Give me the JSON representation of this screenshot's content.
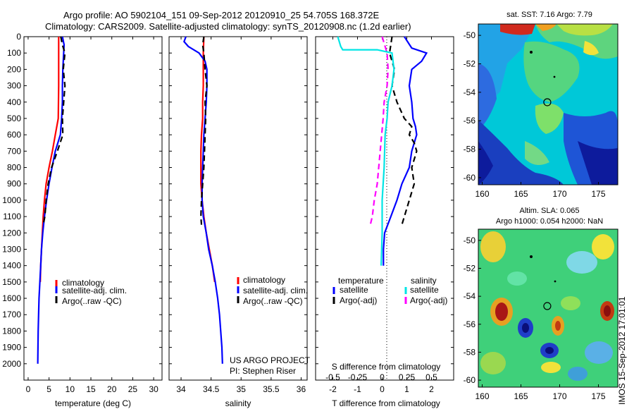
{
  "header": {
    "line1": "Argo profile: AO 5902104_151 09-Sep-2012 20120910_25 54.705S 168.372E",
    "line2": "Climatology: CARS2009. Satellite-adjusted climatology: synTS_20120908.nc (1.2d earlier)"
  },
  "project": {
    "line1": "US ARGO PROJECT",
    "line2": "PI: Stephen Riser"
  },
  "timestamp": "IMOS 15-Sep-2012 17:01:01",
  "colors": {
    "climatology": "#ff0000",
    "satellite": "#0000ff",
    "argo": "#000000",
    "s_satellite": "#00e5e5",
    "s_argo": "#ff00ff"
  },
  "chart_data": [
    {
      "type": "line",
      "xlabel": "temperature (deg C)",
      "xlim": [
        -1,
        32
      ],
      "xticks": [
        0,
        5,
        10,
        15,
        20,
        25,
        30
      ],
      "ylim": [
        0,
        2100
      ],
      "yticks": [
        0,
        100,
        200,
        300,
        400,
        500,
        600,
        700,
        800,
        900,
        1000,
        1100,
        1200,
        1300,
        1400,
        1500,
        1600,
        1700,
        1800,
        1900,
        2000
      ],
      "legend": [
        "climatology",
        "satellite-adj. clim.",
        "Argo(..raw -QC)"
      ],
      "legend_position": "bottom-center",
      "series": [
        {
          "name": "climatology",
          "color": "#ff0000",
          "dash": false,
          "points": [
            [
              7.3,
              0
            ],
            [
              7.3,
              100
            ],
            [
              7.3,
              200
            ],
            [
              7.3,
              300
            ],
            [
              7.25,
              400
            ],
            [
              7.2,
              500
            ],
            [
              6.5,
              600
            ],
            [
              5.8,
              700
            ],
            [
              5.0,
              800
            ],
            [
              4.3,
              900
            ],
            [
              3.9,
              1000
            ],
            [
              3.6,
              1100
            ],
            [
              3.4,
              1200
            ],
            [
              3.2,
              1300
            ],
            [
              3.0,
              1400
            ],
            [
              2.9,
              1500
            ]
          ]
        },
        {
          "name": "satellite-adj. clim.",
          "color": "#0000ff",
          "dash": false,
          "points": [
            [
              8.2,
              0
            ],
            [
              8.6,
              50
            ],
            [
              8.5,
              100
            ],
            [
              8.3,
              200
            ],
            [
              8.2,
              300
            ],
            [
              8.2,
              400
            ],
            [
              8.0,
              500
            ],
            [
              7.7,
              600
            ],
            [
              6.5,
              700
            ],
            [
              5.7,
              800
            ],
            [
              5.0,
              900
            ],
            [
              4.4,
              1000
            ],
            [
              3.9,
              1100
            ],
            [
              3.5,
              1200
            ],
            [
              3.2,
              1300
            ],
            [
              3.0,
              1400
            ],
            [
              2.8,
              1500
            ],
            [
              2.6,
              1600
            ],
            [
              2.5,
              1700
            ],
            [
              2.4,
              1800
            ],
            [
              2.35,
              1900
            ],
            [
              2.3,
              2000
            ]
          ]
        },
        {
          "name": "Argo(..raw -QC)",
          "color": "#000000",
          "dash": true,
          "points": [
            [
              7.8,
              0
            ],
            [
              8.2,
              50
            ],
            [
              8.8,
              100
            ],
            [
              8.4,
              200
            ],
            [
              8.8,
              300
            ],
            [
              8.5,
              400
            ],
            [
              8.2,
              500
            ],
            [
              8.3,
              600
            ],
            [
              7.0,
              700
            ],
            [
              5.6,
              800
            ],
            [
              4.8,
              900
            ],
            [
              4.3,
              1000
            ],
            [
              4.0,
              1100
            ],
            [
              3.6,
              1150
            ]
          ]
        }
      ]
    },
    {
      "type": "line",
      "xlabel": "salinity",
      "xlim": [
        33.8,
        36.1
      ],
      "xticks": [
        34,
        34.5,
        35,
        35.5,
        36
      ],
      "ylim": [
        0,
        2100
      ],
      "legend": [
        "climatology",
        "satellite-adj. clim.",
        "Argo(..raw -QC)"
      ],
      "legend_position": "bottom-center",
      "series": [
        {
          "name": "climatology",
          "color": "#ff0000",
          "dash": false,
          "points": [
            [
              34.38,
              0
            ],
            [
              34.37,
              100
            ],
            [
              34.37,
              200
            ],
            [
              34.37,
              300
            ],
            [
              34.36,
              400
            ],
            [
              34.36,
              500
            ],
            [
              34.34,
              600
            ],
            [
              34.33,
              700
            ],
            [
              34.33,
              800
            ],
            [
              34.33,
              900
            ],
            [
              34.35,
              1000
            ],
            [
              34.38,
              1100
            ],
            [
              34.42,
              1200
            ],
            [
              34.47,
              1300
            ],
            [
              34.52,
              1400
            ],
            [
              34.56,
              1500
            ]
          ]
        },
        {
          "name": "satellite-adj. clim.",
          "color": "#0000ff",
          "dash": false,
          "points": [
            [
              34.08,
              0
            ],
            [
              34.05,
              30
            ],
            [
              34.12,
              60
            ],
            [
              34.3,
              100
            ],
            [
              34.4,
              150
            ],
            [
              34.43,
              200
            ],
            [
              34.43,
              300
            ],
            [
              34.42,
              400
            ],
            [
              34.4,
              500
            ],
            [
              34.38,
              600
            ],
            [
              34.37,
              700
            ],
            [
              34.36,
              800
            ],
            [
              34.35,
              900
            ],
            [
              34.35,
              1000
            ],
            [
              34.37,
              1100
            ],
            [
              34.42,
              1200
            ],
            [
              34.46,
              1300
            ],
            [
              34.52,
              1400
            ],
            [
              34.57,
              1500
            ],
            [
              34.61,
              1600
            ],
            [
              34.64,
              1700
            ],
            [
              34.66,
              1800
            ],
            [
              34.68,
              1900
            ],
            [
              34.69,
              2000
            ]
          ]
        },
        {
          "name": "Argo(..raw -QC)",
          "color": "#000000",
          "dash": true,
          "points": [
            [
              34.38,
              0
            ],
            [
              34.36,
              50
            ],
            [
              34.38,
              100
            ],
            [
              34.4,
              200
            ],
            [
              34.43,
              300
            ],
            [
              34.4,
              400
            ],
            [
              34.41,
              500
            ],
            [
              34.4,
              600
            ],
            [
              34.39,
              700
            ],
            [
              34.38,
              800
            ],
            [
              34.36,
              900
            ],
            [
              34.34,
              1000
            ],
            [
              34.33,
              1100
            ],
            [
              34.34,
              1150
            ]
          ]
        }
      ]
    },
    {
      "type": "line",
      "xlabel": "T difference from climatology",
      "xlim": [
        -2.7,
        2.9
      ],
      "xticks": [
        -2,
        -1,
        0,
        1,
        2
      ],
      "top_axis_label": "S difference from climatology",
      "top_axis_ticks": [
        "-0.5",
        "-0.25",
        "0",
        "0.25",
        "0.5"
      ],
      "ylim": [
        0,
        2100
      ],
      "legend_temperature_title": "temperature",
      "legend_salinity_title": "salinity",
      "legend_temperature": [
        "satellite",
        "Argo(-adj)"
      ],
      "legend_salinity": [
        "satellite",
        "Argo(-adj)"
      ],
      "legend_position": "bottom-center",
      "series": [
        {
          "name": "T satellite",
          "color": "#0000ff",
          "dash": false,
          "points": [
            [
              0.9,
              0
            ],
            [
              1.2,
              70
            ],
            [
              1.8,
              100
            ],
            [
              1.6,
              150
            ],
            [
              1.2,
              200
            ],
            [
              1.1,
              300
            ],
            [
              1.2,
              400
            ],
            [
              1.25,
              500
            ],
            [
              1.35,
              550
            ],
            [
              1.4,
              600
            ],
            [
              1.3,
              650
            ],
            [
              1.2,
              700
            ],
            [
              1.1,
              800
            ],
            [
              0.8,
              900
            ],
            [
              0.6,
              1000
            ],
            [
              0.35,
              1100
            ],
            [
              0.1,
              1200
            ],
            [
              0.05,
              1300
            ],
            [
              0.05,
              1400
            ]
          ]
        },
        {
          "name": "T Argo(-adj)",
          "color": "#000000",
          "dash": true,
          "points": [
            [
              0.4,
              0
            ],
            [
              0.3,
              100
            ],
            [
              0.5,
              200
            ],
            [
              0.4,
              300
            ],
            [
              0.6,
              400
            ],
            [
              0.9,
              500
            ],
            [
              1.2,
              550
            ],
            [
              1.1,
              600
            ],
            [
              1.3,
              650
            ],
            [
              1.4,
              700
            ],
            [
              1.2,
              800
            ],
            [
              1.3,
              900
            ],
            [
              1.1,
              1000
            ],
            [
              0.9,
              1100
            ],
            [
              0.8,
              1150
            ]
          ]
        },
        {
          "name": "S satellite",
          "color": "#00e5e5",
          "dash": false,
          "points": [
            [
              -0.45,
              0
            ],
            [
              -0.42,
              60
            ],
            [
              -0.4,
              80
            ],
            [
              -0.05,
              80
            ],
            [
              0.1,
              100
            ],
            [
              0.12,
              200
            ],
            [
              0.1,
              300
            ],
            [
              0.06,
              400
            ],
            [
              0.05,
              500
            ],
            [
              0.03,
              600
            ],
            [
              0.02,
              800
            ],
            [
              0.0,
              1000
            ],
            [
              0.0,
              1200
            ],
            [
              -0.01,
              1400
            ]
          ]
        },
        {
          "name": "S Argo(-adj)",
          "color": "#ff00ff",
          "dash": true,
          "points": [
            [
              0.0,
              0
            ],
            [
              0.05,
              100
            ],
            [
              0.06,
              200
            ],
            [
              0.05,
              300
            ],
            [
              0.02,
              400
            ],
            [
              0.01,
              500
            ],
            [
              -0.02,
              700
            ],
            [
              -0.05,
              900
            ],
            [
              -0.08,
              1000
            ],
            [
              -0.1,
              1100
            ],
            [
              -0.12,
              1150
            ]
          ]
        }
      ]
    },
    {
      "type": "heatmap",
      "title": "sat. SST: 7.16 Argo: 7.79",
      "xlim": [
        159.5,
        177.5
      ],
      "xticks": [
        160,
        165,
        170,
        175
      ],
      "ylim": [
        -60.5,
        -49.2
      ],
      "yticks": [
        -50,
        -52,
        -54,
        -56,
        -58,
        -60
      ],
      "marker": {
        "lon": 168.4,
        "lat": -54.7
      }
    },
    {
      "type": "heatmap",
      "title_line1": "Altim. SLA: 0.065",
      "title_line2": "Argo h1000: 0.054 h2000: NaN",
      "xlim": [
        159.5,
        177.5
      ],
      "xticks": [
        160,
        165,
        170,
        175
      ],
      "ylim": [
        -60.5,
        -49.2
      ],
      "yticks": [
        -50,
        -52,
        -54,
        -56,
        -58,
        -60
      ],
      "marker": {
        "lon": 168.4,
        "lat": -54.7
      }
    }
  ]
}
